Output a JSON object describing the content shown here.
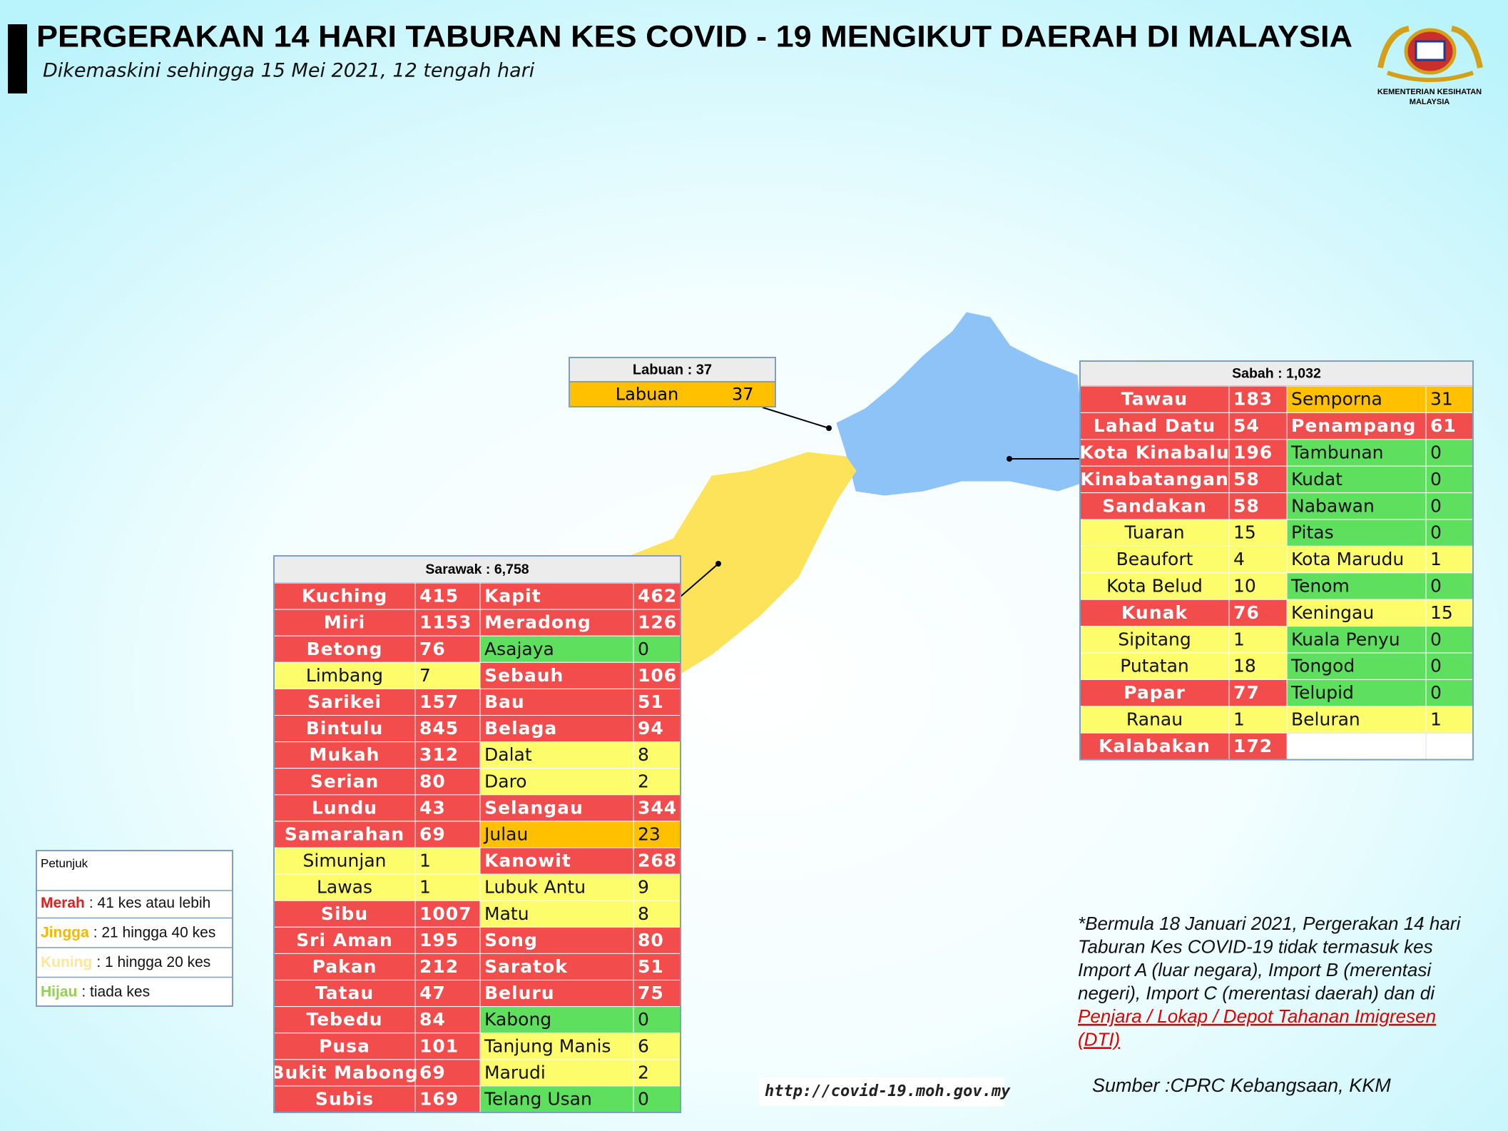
{
  "header": {
    "title": "PERGERAKAN 14 HARI TABURAN KES COVID - 19 MENGIKUT DAERAH DI MALAYSIA",
    "subtitle": "Dikemaskini sehingga 15 Mei 2021, 12 tengah hari",
    "logo_lines": [
      "KEMENTERIAN KESIHATAN",
      "MALAYSIA"
    ]
  },
  "labuan": {
    "header": "Labuan : 37",
    "left": [
      {
        "name": "Labuan",
        "cases": 37,
        "color": "#ffc000"
      }
    ],
    "right": []
  },
  "sabah": {
    "header": "Sabah : 1,032",
    "left": [
      {
        "name": "Tawau",
        "cases": 183,
        "color": "#f24c4c"
      },
      {
        "name": "Lahad Datu",
        "cases": 54,
        "color": "#f24c4c"
      },
      {
        "name": "Kota Kinabalu",
        "cases": 196,
        "color": "#f24c4c"
      },
      {
        "name": "Kinabatangan",
        "cases": 58,
        "color": "#f24c4c"
      },
      {
        "name": "Sandakan",
        "cases": 58,
        "color": "#f24c4c"
      },
      {
        "name": "Tuaran",
        "cases": 15,
        "color": "#fdfd6c"
      },
      {
        "name": "Beaufort",
        "cases": 4,
        "color": "#fdfd6c"
      },
      {
        "name": "Kota Belud",
        "cases": 10,
        "color": "#fdfd6c"
      },
      {
        "name": "Kunak",
        "cases": 76,
        "color": "#f24c4c"
      },
      {
        "name": "Sipitang",
        "cases": 1,
        "color": "#fdfd6c"
      },
      {
        "name": "Putatan",
        "cases": 18,
        "color": "#fdfd6c"
      },
      {
        "name": "Papar",
        "cases": 77,
        "color": "#f24c4c"
      },
      {
        "name": "Ranau",
        "cases": 1,
        "color": "#fdfd6c"
      },
      {
        "name": "Kalabakan",
        "cases": 172,
        "color": "#f24c4c"
      }
    ],
    "right": [
      {
        "name": "Semporna",
        "cases": 31,
        "color": "#ffc000"
      },
      {
        "name": "Penampang",
        "cases": 61,
        "color": "#f24c4c"
      },
      {
        "name": "Tambunan",
        "cases": 0,
        "color": "#5ee05e"
      },
      {
        "name": "Kudat",
        "cases": 0,
        "color": "#5ee05e"
      },
      {
        "name": "Nabawan",
        "cases": 0,
        "color": "#5ee05e"
      },
      {
        "name": "Pitas",
        "cases": 0,
        "color": "#5ee05e"
      },
      {
        "name": "Kota Marudu",
        "cases": 1,
        "color": "#fdfd6c"
      },
      {
        "name": "Tenom",
        "cases": 0,
        "color": "#5ee05e"
      },
      {
        "name": "Keningau",
        "cases": 15,
        "color": "#fdfd6c"
      },
      {
        "name": "Kuala Penyu",
        "cases": 0,
        "color": "#5ee05e"
      },
      {
        "name": "Tongod",
        "cases": 0,
        "color": "#5ee05e"
      },
      {
        "name": "Telupid",
        "cases": 0,
        "color": "#5ee05e"
      },
      {
        "name": "Beluran",
        "cases": 1,
        "color": "#fdfd6c"
      }
    ]
  },
  "sarawak": {
    "header": "Sarawak : 6,758",
    "left": [
      {
        "name": "Kuching",
        "cases": 415,
        "color": "#f24c4c"
      },
      {
        "name": "Miri",
        "cases": 1153,
        "color": "#f24c4c"
      },
      {
        "name": "Betong",
        "cases": 76,
        "color": "#f24c4c"
      },
      {
        "name": "Limbang",
        "cases": 7,
        "color": "#fdfd6c"
      },
      {
        "name": "Sarikei",
        "cases": 157,
        "color": "#f24c4c"
      },
      {
        "name": "Bintulu",
        "cases": 845,
        "color": "#f24c4c"
      },
      {
        "name": "Mukah",
        "cases": 312,
        "color": "#f24c4c"
      },
      {
        "name": "Serian",
        "cases": 80,
        "color": "#f24c4c"
      },
      {
        "name": "Lundu",
        "cases": 43,
        "color": "#f24c4c"
      },
      {
        "name": "Samarahan",
        "cases": 69,
        "color": "#f24c4c"
      },
      {
        "name": "Simunjan",
        "cases": 1,
        "color": "#fdfd6c"
      },
      {
        "name": "Lawas",
        "cases": 1,
        "color": "#fdfd6c"
      },
      {
        "name": "Sibu",
        "cases": 1007,
        "color": "#f24c4c"
      },
      {
        "name": "Sri Aman",
        "cases": 195,
        "color": "#f24c4c"
      },
      {
        "name": "Pakan",
        "cases": 212,
        "color": "#f24c4c"
      },
      {
        "name": "Tatau",
        "cases": 47,
        "color": "#f24c4c"
      },
      {
        "name": "Tebedu",
        "cases": 84,
        "color": "#f24c4c"
      },
      {
        "name": "Pusa",
        "cases": 101,
        "color": "#f24c4c"
      },
      {
        "name": "Bukit Mabong",
        "cases": 69,
        "color": "#f24c4c"
      },
      {
        "name": "Subis",
        "cases": 169,
        "color": "#f24c4c"
      }
    ],
    "right": [
      {
        "name": "Kapit",
        "cases": 462,
        "color": "#f24c4c"
      },
      {
        "name": "Meradong",
        "cases": 126,
        "color": "#f24c4c"
      },
      {
        "name": "Asajaya",
        "cases": 0,
        "color": "#5ee05e"
      },
      {
        "name": "Sebauh",
        "cases": 106,
        "color": "#f24c4c"
      },
      {
        "name": "Bau",
        "cases": 51,
        "color": "#f24c4c"
      },
      {
        "name": "Belaga",
        "cases": 94,
        "color": "#f24c4c"
      },
      {
        "name": "Dalat",
        "cases": 8,
        "color": "#fdfd6c"
      },
      {
        "name": "Daro",
        "cases": 2,
        "color": "#fdfd6c"
      },
      {
        "name": "Selangau",
        "cases": 344,
        "color": "#f24c4c"
      },
      {
        "name": "Julau",
        "cases": 23,
        "color": "#ffc000"
      },
      {
        "name": "Kanowit",
        "cases": 268,
        "color": "#f24c4c"
      },
      {
        "name": "Lubuk Antu",
        "cases": 9,
        "color": "#fdfd6c"
      },
      {
        "name": "Matu",
        "cases": 8,
        "color": "#fdfd6c"
      },
      {
        "name": "Song",
        "cases": 80,
        "color": "#f24c4c"
      },
      {
        "name": "Saratok",
        "cases": 51,
        "color": "#f24c4c"
      },
      {
        "name": "Beluru",
        "cases": 75,
        "color": "#f24c4c"
      },
      {
        "name": "Kabong",
        "cases": 0,
        "color": "#5ee05e"
      },
      {
        "name": "Tanjung Manis",
        "cases": 6,
        "color": "#fdfd6c"
      },
      {
        "name": "Marudi",
        "cases": 2,
        "color": "#fdfd6c"
      },
      {
        "name": "Telang Usan",
        "cases": 0,
        "color": "#5ee05e"
      }
    ]
  },
  "legend": {
    "title": "Petunjuk",
    "items": [
      {
        "label": "Merah",
        "text": ": 41 kes atau lebih",
        "color": "#e02020"
      },
      {
        "label": "Jingga",
        "text": ": 21 hingga 40 kes",
        "color": "#f5b800"
      },
      {
        "label": "Kuning",
        "text": ": 1 hingga 20 kes",
        "color": "#ffe699"
      },
      {
        "label": "Hijau",
        "text": ": tiada kes",
        "color": "#92d050"
      }
    ]
  },
  "footnote": {
    "lines": [
      "*Bermula 18 Januari 2021, Pergerakan 14 hari",
      "Taburan Kes COVID-19 tidak termasuk kes",
      "Import A (luar negara), Import B (merentasi",
      "negeri), Import C (merentasi daerah) dan di"
    ],
    "link_lines": [
      "Penjara / Lokap / Depot Tahanan Imigresen",
      "(DTI)"
    ]
  },
  "source": "Sumber :CPRC Kebangsaan,  KKM",
  "url": "http://covid-19.moh.gov.my"
}
